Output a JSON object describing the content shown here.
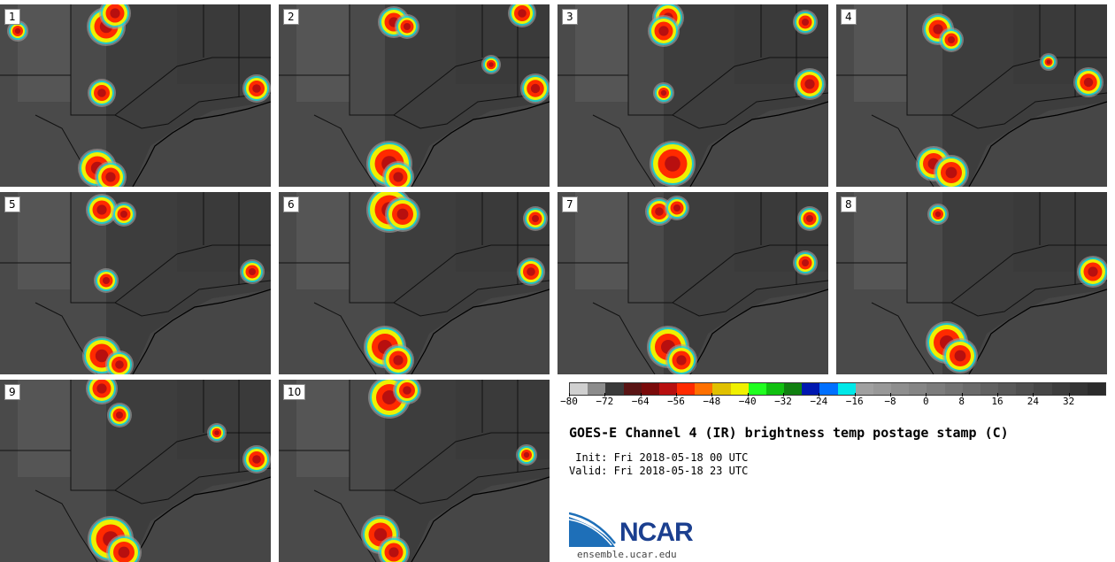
{
  "panels": [
    {
      "label": "1"
    },
    {
      "label": "2"
    },
    {
      "label": "3"
    },
    {
      "label": "4"
    },
    {
      "label": "5"
    },
    {
      "label": "6"
    },
    {
      "label": "7"
    },
    {
      "label": "8"
    },
    {
      "label": "9"
    },
    {
      "label": "10"
    }
  ],
  "colorbar": {
    "colors": [
      "#d0d0d0",
      "#8c8c8c",
      "#3a3a3a",
      "#5a1414",
      "#7a0a0a",
      "#b80f0f",
      "#ff2a00",
      "#ff7000",
      "#e0c000",
      "#f0f000",
      "#20ff20",
      "#10c010",
      "#108010",
      "#0018b0",
      "#0070ff",
      "#00e8e8",
      "#a0a0a0",
      "#989898",
      "#8e8e8e",
      "#858585",
      "#7c7c7c",
      "#737373",
      "#6a6a6a",
      "#616161",
      "#585858",
      "#4f4f4f",
      "#464646",
      "#3d3d3d",
      "#343434",
      "#2b2b2b"
    ],
    "ticks": [
      "−80",
      "−72",
      "−64",
      "−56",
      "−48",
      "−40",
      "−32",
      "−24",
      "−16",
      "−8",
      "0",
      "8",
      "16",
      "24",
      "32"
    ]
  },
  "title": "GOES-E Channel 4 (IR) brightness temp postage stamp (C)",
  "init_line": " Init: Fri 2018-05-18 00 UTC",
  "valid_line": "Valid: Fri 2018-05-18 23 UTC",
  "logo_text": "NCAR",
  "website": "ensemble.ucar.edu"
}
